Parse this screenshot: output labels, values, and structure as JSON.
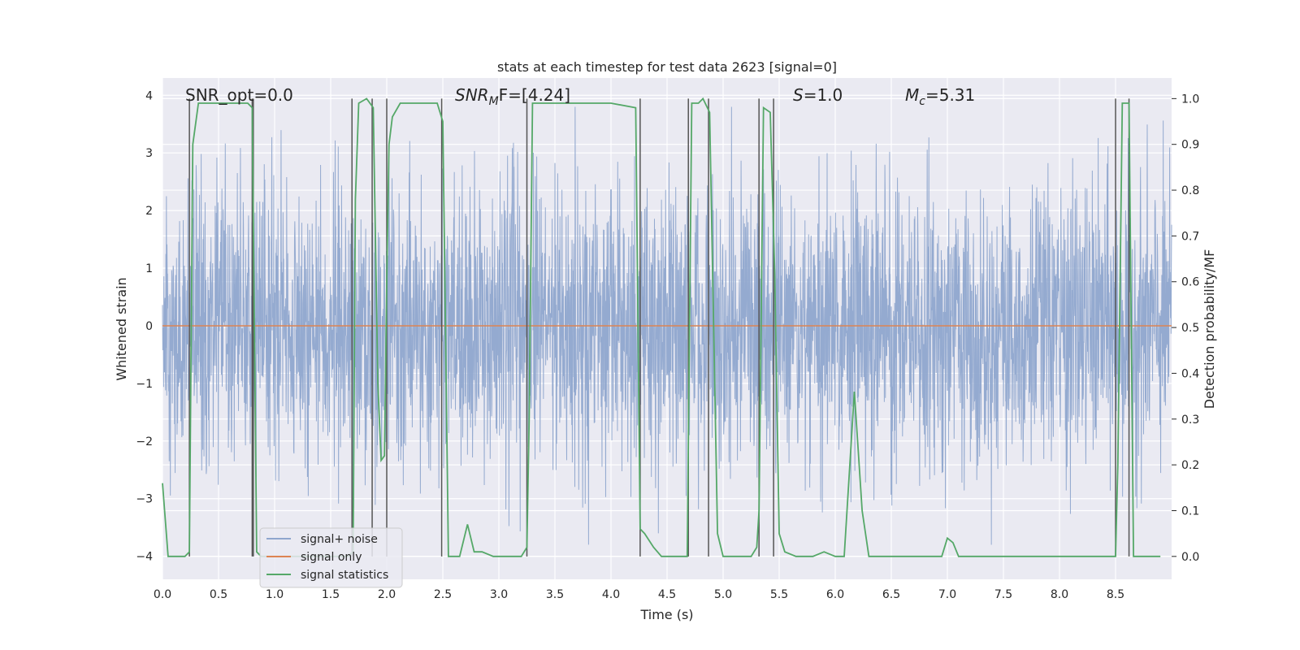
{
  "chart_data": {
    "type": "line",
    "title": "stats at each timestep for test data 2623 [signal=0]",
    "xlabel": "Time (s)",
    "ylabel_left": "Whitened strain",
    "ylabel_right": "Detection probability/MF",
    "xlim": [
      0.0,
      9.0
    ],
    "ylim_left": [
      -4.4,
      4.3
    ],
    "ylim_right": [
      -0.05,
      1.045
    ],
    "x_ticks": [
      0.0,
      0.5,
      1.0,
      1.5,
      2.0,
      2.5,
      3.0,
      3.5,
      4.0,
      4.5,
      5.0,
      5.5,
      6.0,
      6.5,
      7.0,
      7.5,
      8.0,
      8.5
    ],
    "x_tick_labels": [
      "0.0",
      "0.5",
      "1.0",
      "1.5",
      "2.0",
      "2.5",
      "3.0",
      "3.5",
      "4.0",
      "4.5",
      "5.0",
      "5.5",
      "6.0",
      "6.5",
      "7.0",
      "7.5",
      "8.0",
      "8.5"
    ],
    "y_left_ticks": [
      4,
      3,
      2,
      1,
      0,
      -1,
      -2,
      -3,
      -4
    ],
    "y_left_tick_labels": [
      "4",
      "3",
      "2",
      "1",
      "0",
      "−1",
      "−2",
      "−3",
      "−4"
    ],
    "y_right_ticks": [
      1.0,
      0.9,
      0.8,
      0.7,
      0.6,
      0.5,
      0.4,
      0.3,
      0.2,
      0.1,
      0.0
    ],
    "y_right_tick_labels": [
      "1.0",
      "0.9",
      "0.8",
      "0.7",
      "0.6",
      "0.5",
      "0.4",
      "0.3",
      "0.2",
      "0.1",
      "0.0"
    ],
    "grid": true,
    "legend_position": "bottom-left",
    "annotations": {
      "snr_opt": "SNR_opt=0.0",
      "snr_mf_main": "SNR",
      "snr_mf_sub": "M",
      "snr_mf_rest": "F=[4.24]",
      "s_main": "S",
      "s_rest": "=1.0",
      "mc_main": "M",
      "mc_sub": "c",
      "mc_rest": "=5.31"
    },
    "noise": {
      "name": "signal+ noise",
      "color": "#8fa6ce",
      "fs": 400,
      "amplitude_typical": 1.6,
      "amplitude_max": 3.8
    },
    "signal_only": {
      "name": "signal only",
      "color": "#dd8452",
      "value": 0.0
    },
    "statistics": {
      "name": "signal statistics",
      "color": "#55a868",
      "x": [
        0.0,
        0.05,
        0.1,
        0.2,
        0.24,
        0.27,
        0.32,
        0.35,
        0.5,
        0.65,
        0.76,
        0.8,
        0.84,
        0.88,
        1.0,
        1.5,
        1.6,
        1.65,
        1.7,
        1.72,
        1.75,
        1.82,
        1.88,
        1.92,
        1.95,
        1.98,
        2.0,
        2.02,
        2.05,
        2.12,
        2.3,
        2.45,
        2.5,
        2.55,
        2.6,
        2.65,
        2.72,
        2.78,
        2.85,
        2.95,
        3.1,
        3.2,
        3.25,
        3.27,
        3.3,
        3.5,
        4.0,
        4.22,
        4.26,
        4.3,
        4.38,
        4.45,
        4.55,
        4.65,
        4.68,
        4.72,
        4.78,
        4.82,
        4.88,
        4.95,
        5.0,
        5.1,
        5.25,
        5.3,
        5.32,
        5.36,
        5.42,
        5.46,
        5.5,
        5.55,
        5.65,
        5.8,
        5.9,
        6.0,
        6.08,
        6.17,
        6.2,
        6.24,
        6.3,
        6.45,
        6.9,
        6.95,
        7.0,
        7.05,
        7.1,
        7.5,
        7.6,
        8.0,
        8.4,
        8.5,
        8.52,
        8.56,
        8.62,
        8.66,
        8.7,
        8.9
      ],
      "values": [
        0.16,
        0.0,
        0.0,
        0.0,
        0.01,
        0.9,
        0.99,
        0.99,
        0.99,
        0.99,
        0.99,
        0.98,
        0.01,
        0.0,
        0.0,
        0.0,
        0.0,
        0.0,
        0.01,
        0.78,
        0.99,
        1.0,
        0.98,
        0.38,
        0.21,
        0.22,
        0.6,
        0.9,
        0.96,
        0.99,
        0.99,
        0.99,
        0.95,
        0.0,
        0.0,
        0.0,
        0.07,
        0.01,
        0.01,
        0.0,
        0.0,
        0.0,
        0.02,
        0.3,
        0.99,
        0.99,
        0.99,
        0.98,
        0.06,
        0.05,
        0.02,
        0.0,
        0.0,
        0.0,
        0.0,
        0.99,
        0.99,
        1.0,
        0.97,
        0.05,
        0.0,
        0.0,
        0.0,
        0.02,
        0.1,
        0.98,
        0.97,
        0.62,
        0.05,
        0.01,
        0.0,
        0.0,
        0.01,
        0.0,
        0.0,
        0.36,
        0.25,
        0.1,
        0.0,
        0.0,
        0.0,
        0.0,
        0.04,
        0.03,
        0.0,
        0.0,
        0.0,
        0.0,
        0.0,
        0.0,
        0.2,
        0.99,
        0.99,
        0.0,
        0.0,
        0.0
      ]
    },
    "vlines": [
      0.24,
      0.8,
      0.81,
      1.69,
      1.87,
      2.0,
      2.49,
      3.25,
      4.26,
      4.69,
      4.87,
      5.32,
      5.45,
      8.5,
      8.62
    ],
    "vline_color": "#555555"
  }
}
